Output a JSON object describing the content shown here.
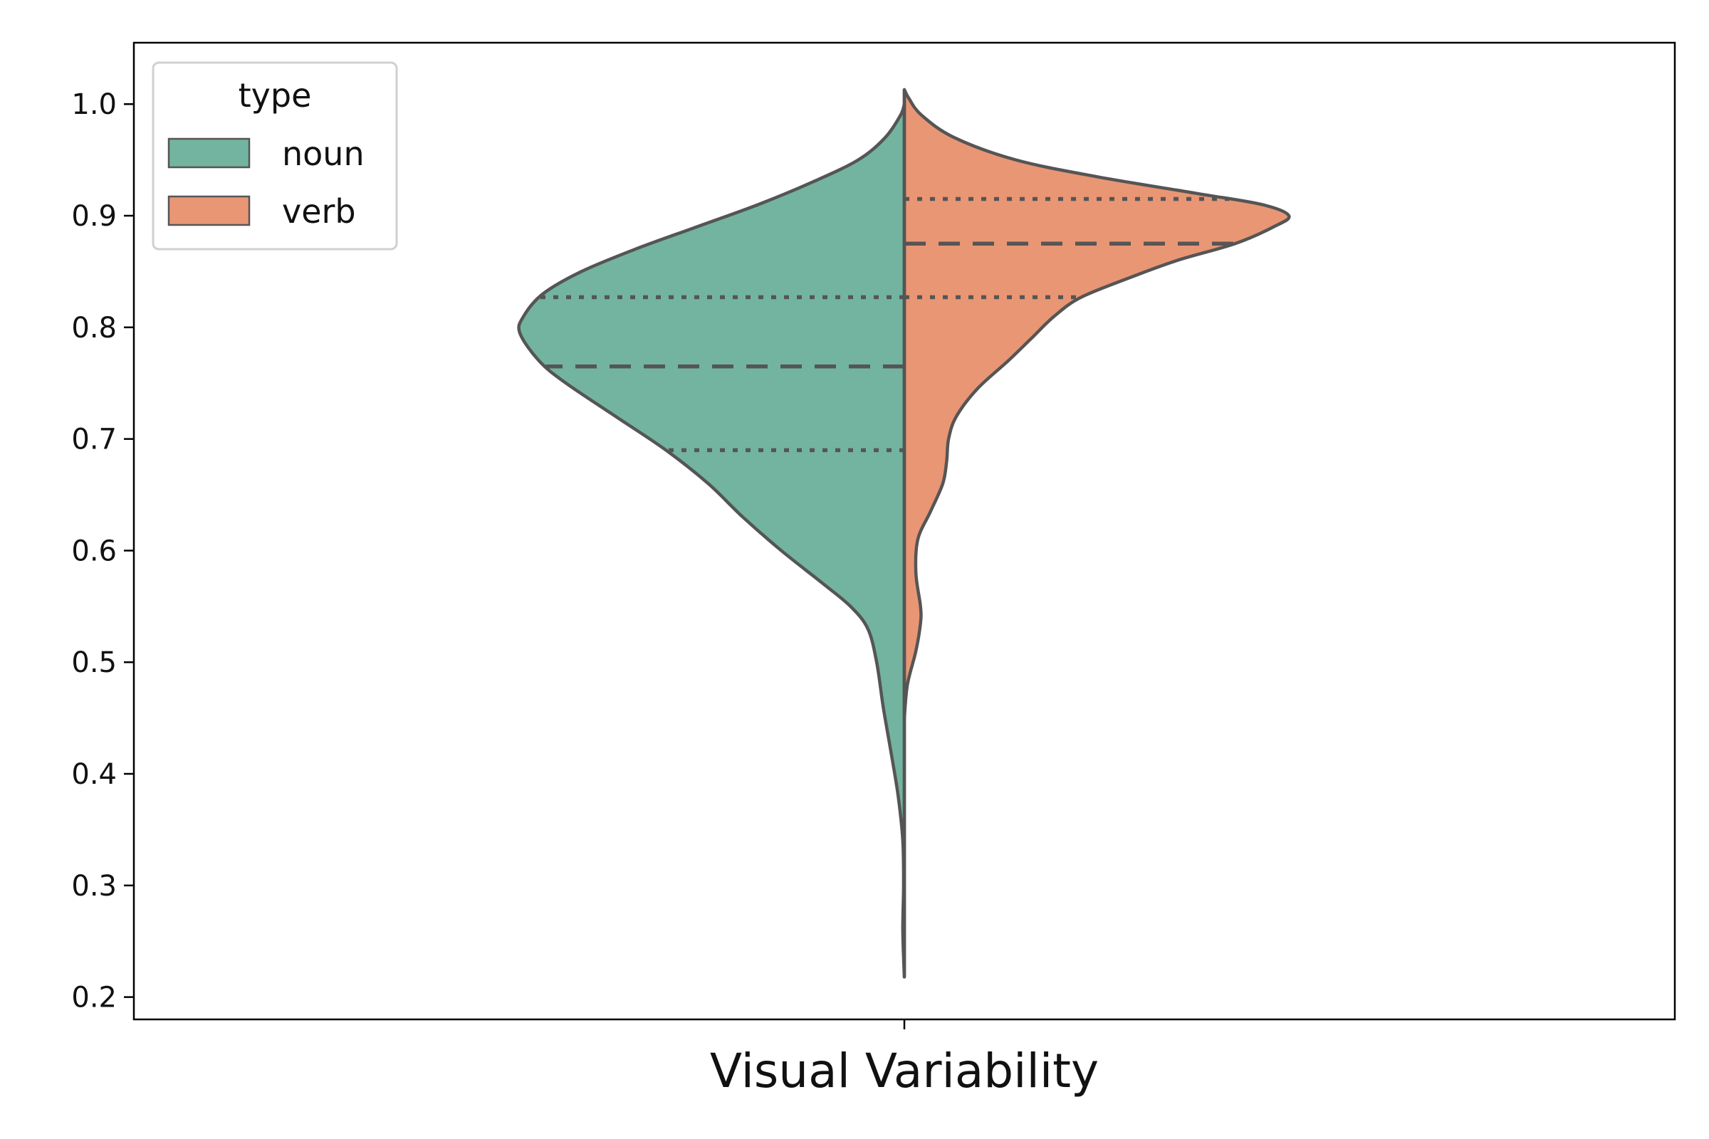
{
  "chart_data": {
    "type": "violin",
    "xlabel": "Visual Variability",
    "ylim": [
      0.18,
      1.055
    ],
    "yticks": [
      "0.2",
      "0.3",
      "0.4",
      "0.5",
      "0.6",
      "0.7",
      "0.8",
      "0.9",
      "1.0"
    ],
    "grid": false,
    "split": true,
    "legend": {
      "title": "type",
      "placement": "top-left"
    },
    "series": [
      {
        "name": "noun",
        "color": "#72b4a0",
        "side": "left",
        "quartiles": {
          "q1": 0.69,
          "median": 0.765,
          "q3": 0.827
        },
        "density": [
          [
            0.218,
            0.0
          ],
          [
            0.26,
            0.004
          ],
          [
            0.3,
            0.002
          ],
          [
            0.34,
            0.004
          ],
          [
            0.38,
            0.016
          ],
          [
            0.42,
            0.035
          ],
          [
            0.46,
            0.055
          ],
          [
            0.5,
            0.072
          ],
          [
            0.53,
            0.095
          ],
          [
            0.55,
            0.14
          ],
          [
            0.57,
            0.21
          ],
          [
            0.6,
            0.32
          ],
          [
            0.63,
            0.42
          ],
          [
            0.66,
            0.51
          ],
          [
            0.69,
            0.62
          ],
          [
            0.72,
            0.75
          ],
          [
            0.75,
            0.88
          ],
          [
            0.77,
            0.95
          ],
          [
            0.795,
            1.0
          ],
          [
            0.81,
            0.99
          ],
          [
            0.83,
            0.94
          ],
          [
            0.85,
            0.84
          ],
          [
            0.87,
            0.7
          ],
          [
            0.89,
            0.54
          ],
          [
            0.91,
            0.38
          ],
          [
            0.93,
            0.24
          ],
          [
            0.95,
            0.12
          ],
          [
            0.97,
            0.05
          ],
          [
            0.99,
            0.01
          ],
          [
            1.0,
            0.0
          ]
        ]
      },
      {
        "name": "verb",
        "color": "#e99675",
        "side": "right",
        "quartiles": {
          "q1": 0.827,
          "median": 0.875,
          "q3": 0.915
        },
        "density": [
          [
            0.45,
            0.0
          ],
          [
            0.48,
            0.008
          ],
          [
            0.51,
            0.03
          ],
          [
            0.535,
            0.042
          ],
          [
            0.55,
            0.042
          ],
          [
            0.58,
            0.03
          ],
          [
            0.61,
            0.035
          ],
          [
            0.635,
            0.068
          ],
          [
            0.66,
            0.1
          ],
          [
            0.68,
            0.11
          ],
          [
            0.7,
            0.115
          ],
          [
            0.72,
            0.135
          ],
          [
            0.745,
            0.19
          ],
          [
            0.77,
            0.27
          ],
          [
            0.79,
            0.33
          ],
          [
            0.81,
            0.39
          ],
          [
            0.827,
            0.46
          ],
          [
            0.845,
            0.59
          ],
          [
            0.86,
            0.71
          ],
          [
            0.875,
            0.86
          ],
          [
            0.89,
            0.96
          ],
          [
            0.9,
            1.0
          ],
          [
            0.91,
            0.93
          ],
          [
            0.92,
            0.76
          ],
          [
            0.935,
            0.5
          ],
          [
            0.95,
            0.29
          ],
          [
            0.97,
            0.13
          ],
          [
            0.99,
            0.045
          ],
          [
            1.005,
            0.012
          ],
          [
            1.013,
            0.0
          ]
        ]
      }
    ]
  }
}
